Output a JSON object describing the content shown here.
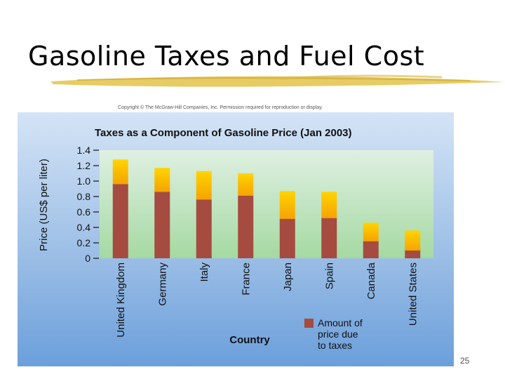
{
  "slide": {
    "title": "Gasoline Taxes and Fuel Cost",
    "copyright": "Copyright © The McGraw-Hill Companies, Inc. Permission required for reproduction or display.",
    "page_number": "25"
  },
  "colors": {
    "tax": "#a64b3f",
    "non_tax_top": "#ffd400",
    "non_tax_bottom": "#f5a300",
    "plot_top": "#dff0e2",
    "plot_bottom": "#a5d9a2",
    "underline": "#e3c34a"
  },
  "chart_data": {
    "type": "bar",
    "stacked": true,
    "title": "Taxes as a Component of Gasoline Price (Jan 2003)",
    "xlabel": "Country",
    "ylabel": "Price (US$ per liter)",
    "ylim": [
      0,
      1.4
    ],
    "yticks": [
      "0",
      "0.2",
      "0.4",
      "0.6",
      "0.8",
      "1.0",
      "1.2",
      "1.4"
    ],
    "categories": [
      "United Kingdom",
      "Germany",
      "Italy",
      "France",
      "Japan",
      "Spain",
      "Canada",
      "United States"
    ],
    "total_price": [
      1.28,
      1.17,
      1.13,
      1.1,
      0.87,
      0.86,
      0.46,
      0.36
    ],
    "tax": [
      0.96,
      0.86,
      0.76,
      0.81,
      0.51,
      0.52,
      0.22,
      0.1
    ],
    "legend": {
      "label": "Amount of price due to taxes",
      "lines": [
        "Amount of",
        "price due",
        "to taxes"
      ],
      "placement": "bottom-right"
    },
    "grid": false
  }
}
